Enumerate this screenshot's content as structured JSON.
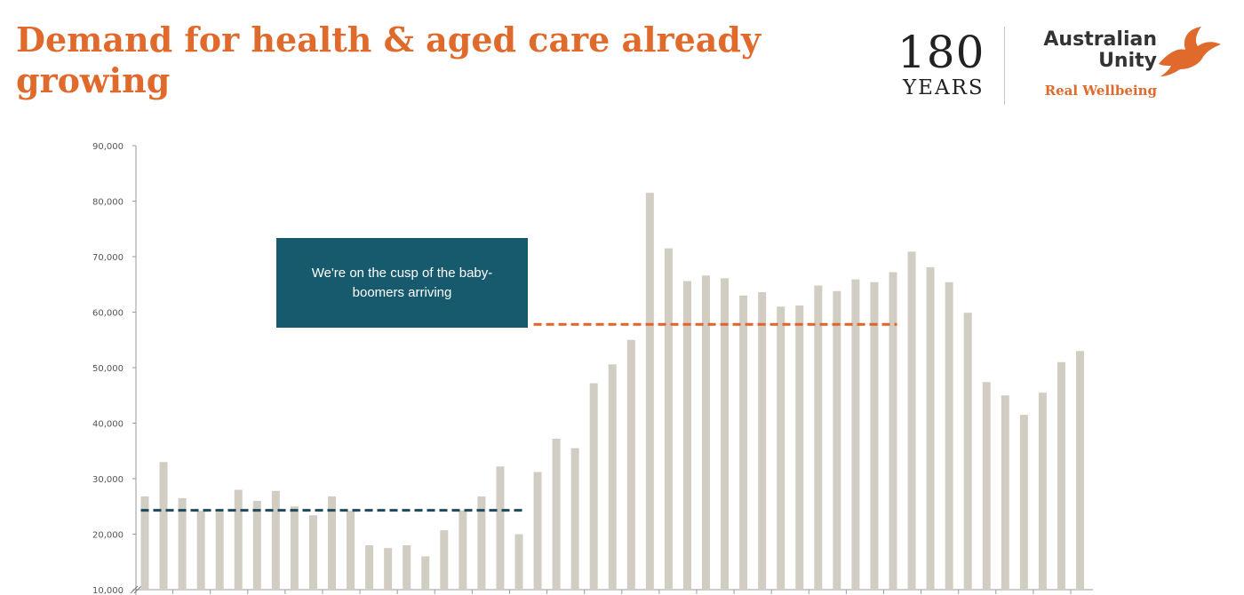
{
  "title": "Demand for health & aged care already growing",
  "logo": {
    "years_number": "180",
    "years_word": "YEARS",
    "brand_line1": "Australian",
    "brand_line2": "Unity",
    "tagline": "Real Wellbeing",
    "bird_icon": "bird-icon",
    "brand_color": "#e06a2c"
  },
  "callout": {
    "text": "We're on the cusp of the baby-boomers arriving",
    "color": "#175a6e"
  },
  "chart_data": {
    "type": "bar",
    "title": "",
    "xlabel": "",
    "ylabel": "",
    "ylim": [
      10000,
      90000
    ],
    "yticks": [
      10000,
      20000,
      30000,
      40000,
      50000,
      60000,
      70000,
      80000,
      90000
    ],
    "ytick_labels": [
      "10,000",
      "20,000",
      "30,000",
      "40,000",
      "50,000",
      "60,000",
      "70,000",
      "80,000",
      "90,000"
    ],
    "grid": false,
    "bar_color": "#d2cdc3",
    "series": [
      {
        "values": [
          26800,
          33000,
          26500,
          24200,
          24000,
          28000,
          26000,
          27800,
          25000,
          23400,
          26800,
          24200,
          18000,
          17500,
          18000,
          16000,
          20700,
          24300,
          26800,
          32200,
          20000,
          31200,
          37200,
          35500,
          47200,
          50600,
          55000,
          81500,
          71500,
          65600,
          66600,
          66100,
          63000,
          63600,
          61000,
          61200,
          64800,
          63800,
          65900,
          65400,
          67200,
          70900,
          68100,
          65400,
          59900,
          47400,
          45000,
          41500,
          45500,
          51000,
          53000
        ]
      }
    ],
    "reference_lines": [
      {
        "value": 24300,
        "from_index": 0,
        "to_index": 20,
        "color": "#1f4a5e",
        "style": "dashed"
      },
      {
        "value": 57800,
        "from_index": 21,
        "to_index": 40,
        "color": "#e2622a",
        "style": "dashed"
      }
    ]
  }
}
